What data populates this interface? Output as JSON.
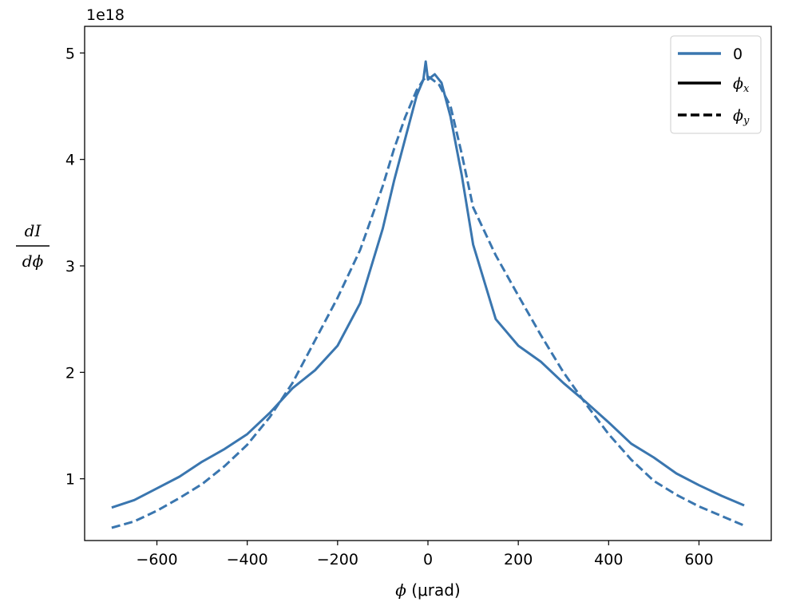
{
  "chart_data": {
    "type": "line",
    "title": "",
    "xlabel_symbol": "ϕ",
    "xlabel_unit": " (μrad)",
    "ylabel_numerator": "dI",
    "ylabel_denominator": "dϕ",
    "offset_label": "1e18",
    "xlim": [
      -760,
      760
    ],
    "ylim": [
      0.42,
      5.25
    ],
    "xticks": [
      -600,
      -400,
      -200,
      0,
      200,
      400,
      600
    ],
    "xtick_labels": [
      "−600",
      "−400",
      "−200",
      "0",
      "200",
      "400",
      "600"
    ],
    "yticks": [
      1,
      2,
      3,
      4,
      5
    ],
    "ytick_labels": [
      "1",
      "2",
      "3",
      "4",
      "5"
    ],
    "grid": false,
    "legend_position": "top-right",
    "legend": [
      {
        "label": "0",
        "style": "solid",
        "color": "#3a76af"
      },
      {
        "label": "ϕ",
        "sub": "x",
        "style": "solid",
        "color": "#000000"
      },
      {
        "label": "ϕ",
        "sub": "y",
        "style": "dashed",
        "color": "#000000"
      }
    ],
    "series": [
      {
        "name": "ϕx",
        "style": "solid",
        "color": "#3a76af",
        "x": [
          -700,
          -650,
          -600,
          -550,
          -500,
          -450,
          -400,
          -350,
          -300,
          -250,
          -200,
          -150,
          -100,
          -75,
          -50,
          -25,
          -10,
          -5,
          0,
          15,
          30,
          50,
          75,
          100,
          150,
          200,
          250,
          300,
          350,
          400,
          450,
          500,
          550,
          600,
          650,
          700
        ],
        "y": [
          0.73,
          0.8,
          0.91,
          1.02,
          1.16,
          1.28,
          1.42,
          1.62,
          1.85,
          2.02,
          2.25,
          2.65,
          3.35,
          3.8,
          4.2,
          4.6,
          4.75,
          4.92,
          4.75,
          4.8,
          4.72,
          4.4,
          3.85,
          3.2,
          2.5,
          2.25,
          2.1,
          1.9,
          1.72,
          1.53,
          1.33,
          1.2,
          1.05,
          0.94,
          0.84,
          0.75
        ]
      },
      {
        "name": "ϕy",
        "style": "dashed",
        "color": "#3a76af",
        "x": [
          -700,
          -650,
          -600,
          -550,
          -500,
          -450,
          -400,
          -350,
          -300,
          -250,
          -200,
          -150,
          -100,
          -75,
          -50,
          -25,
          -10,
          0,
          10,
          25,
          50,
          75,
          100,
          150,
          200,
          250,
          300,
          350,
          400,
          450,
          500,
          550,
          600,
          650,
          700
        ],
        "y": [
          0.54,
          0.6,
          0.7,
          0.82,
          0.95,
          1.12,
          1.32,
          1.58,
          1.9,
          2.3,
          2.7,
          3.15,
          3.75,
          4.1,
          4.4,
          4.65,
          4.75,
          4.78,
          4.75,
          4.7,
          4.5,
          4.05,
          3.55,
          3.1,
          2.72,
          2.35,
          2.0,
          1.7,
          1.42,
          1.18,
          0.98,
          0.85,
          0.74,
          0.65,
          0.56
        ]
      }
    ]
  }
}
